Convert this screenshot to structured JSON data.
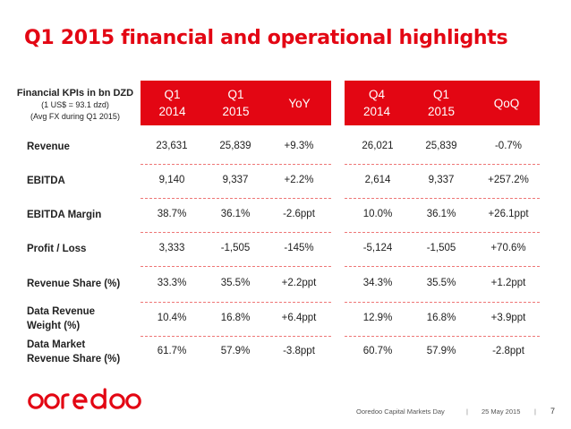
{
  "title": "Q1 2015 financial and operational highlights",
  "kpi_header": {
    "line1": "Financial KPIs in bn DZD",
    "line2": "(1 US$ = 93.1 dzd)",
    "line3": "(Avg FX during Q1 2015)"
  },
  "columns": [
    "Q1\n2014",
    "Q1\n2015",
    "YoY",
    "Q4\n2014",
    "Q1\n2015",
    "QoQ"
  ],
  "rows": [
    {
      "label": "Revenue",
      "values": [
        "23,631",
        "25,839",
        "+9.3%",
        "26,021",
        "25,839",
        "-0.7%"
      ]
    },
    {
      "label": "EBITDA",
      "values": [
        "9,140",
        "9,337",
        "+2.2%",
        "2,614",
        "9,337",
        "+257.2%"
      ]
    },
    {
      "label": "EBITDA Margin",
      "values": [
        "38.7%",
        "36.1%",
        "-2.6ppt",
        "10.0%",
        "36.1%",
        "+26.1ppt"
      ]
    },
    {
      "label": "Profit / Loss",
      "values": [
        "3,333",
        "-1,505",
        "-145%",
        "-5,124",
        "-1,505",
        "+70.6%"
      ]
    },
    {
      "label": "Revenue Share (%)",
      "values": [
        "33.3%",
        "35.5%",
        "+2.2ppt",
        "34.3%",
        "35.5%",
        "+1.2ppt"
      ]
    },
    {
      "label": "Data Revenue\nWeight (%)",
      "values": [
        "10.4%",
        "16.8%",
        "+6.4ppt",
        "12.9%",
        "16.8%",
        "+3.9ppt"
      ]
    },
    {
      "label": "Data Market\nRevenue Share (%)",
      "values": [
        "61.7%",
        "57.9%",
        "-3.8ppt",
        "60.7%",
        "57.9%",
        "-2.8ppt"
      ]
    }
  ],
  "logo": {
    "text": "ooredoo",
    "color": "#e30613"
  },
  "footer": {
    "event": "Ooredoo Capital Markets Day",
    "separator": "|",
    "date": "25 May 2015",
    "page": "7"
  },
  "colors": {
    "accent": "#e30613"
  }
}
